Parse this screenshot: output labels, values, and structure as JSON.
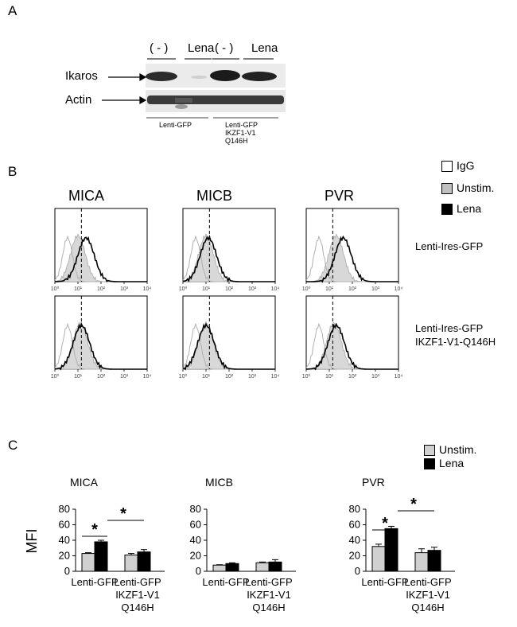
{
  "panel_a": {
    "letter": "A",
    "lane_labels": [
      "( - )",
      "Lena",
      "( - )",
      "Lena"
    ],
    "row_labels": [
      "Ikaros",
      "Actin"
    ],
    "group_labels": [
      "Lenti-GFP",
      "Lenti-GFP\nIKZF1-V1\nQ146H"
    ]
  },
  "panel_b": {
    "letter": "B",
    "columns": [
      "MICA",
      "MICB",
      "PVR"
    ],
    "rows": [
      "Lenti-Ires-GFP",
      "Lenti-Ires-GFP\nIKZF1-V1-Q146H"
    ],
    "legend": [
      {
        "label": "IgG",
        "color": "#ffffff"
      },
      {
        "label": "Unstim.",
        "color": "#c0c0c0"
      },
      {
        "label": "Lena",
        "color": "#000000"
      }
    ],
    "x_ticks": [
      "10⁰",
      "10¹",
      "10²",
      "10³",
      "10⁴"
    ]
  },
  "panel_c": {
    "letter": "C",
    "legend": [
      {
        "label": "Unstim.",
        "color": "#d0d0d0"
      },
      {
        "label": "Lena",
        "color": "#000000"
      }
    ],
    "ylabel": "MFI",
    "significance": "*"
  },
  "chart_data": [
    {
      "type": "bar",
      "title": "MICA",
      "categories": [
        "Lenti-GFP",
        "Lenti-GFP\nIKZF1-V1\nQ146H"
      ],
      "series": [
        {
          "name": "Unstim.",
          "values": [
            23,
            21
          ],
          "errors": [
            1,
            2
          ]
        },
        {
          "name": "Lena",
          "values": [
            38,
            25
          ],
          "errors": [
            2,
            3
          ]
        }
      ],
      "ylabel": "MFI",
      "ylim": [
        0,
        80
      ],
      "yticks": [
        0,
        20,
        40,
        60,
        80
      ]
    },
    {
      "type": "bar",
      "title": "MICB",
      "categories": [
        "Lenti-GFP",
        "Lenti-GFP\nIKZF1-V1\nQ146H"
      ],
      "series": [
        {
          "name": "Unstim.",
          "values": [
            8,
            11
          ],
          "errors": [
            0.5,
            1
          ]
        },
        {
          "name": "Lena",
          "values": [
            10,
            12
          ],
          "errors": [
            1,
            3
          ]
        }
      ],
      "ylim": [
        0,
        80
      ],
      "yticks": [
        0,
        20,
        40,
        60,
        80
      ]
    },
    {
      "type": "bar",
      "title": "PVR",
      "categories": [
        "Lenti-GFP",
        "Lenti-GFP\nIKZF1-V1\nQ146H"
      ],
      "series": [
        {
          "name": "Unstim.",
          "values": [
            32,
            24
          ],
          "errors": [
            3,
            5
          ]
        },
        {
          "name": "Lena",
          "values": [
            55,
            27
          ],
          "errors": [
            3,
            4
          ]
        }
      ],
      "ylim": [
        0,
        80
      ],
      "yticks": [
        0,
        20,
        40,
        60,
        80
      ]
    }
  ]
}
